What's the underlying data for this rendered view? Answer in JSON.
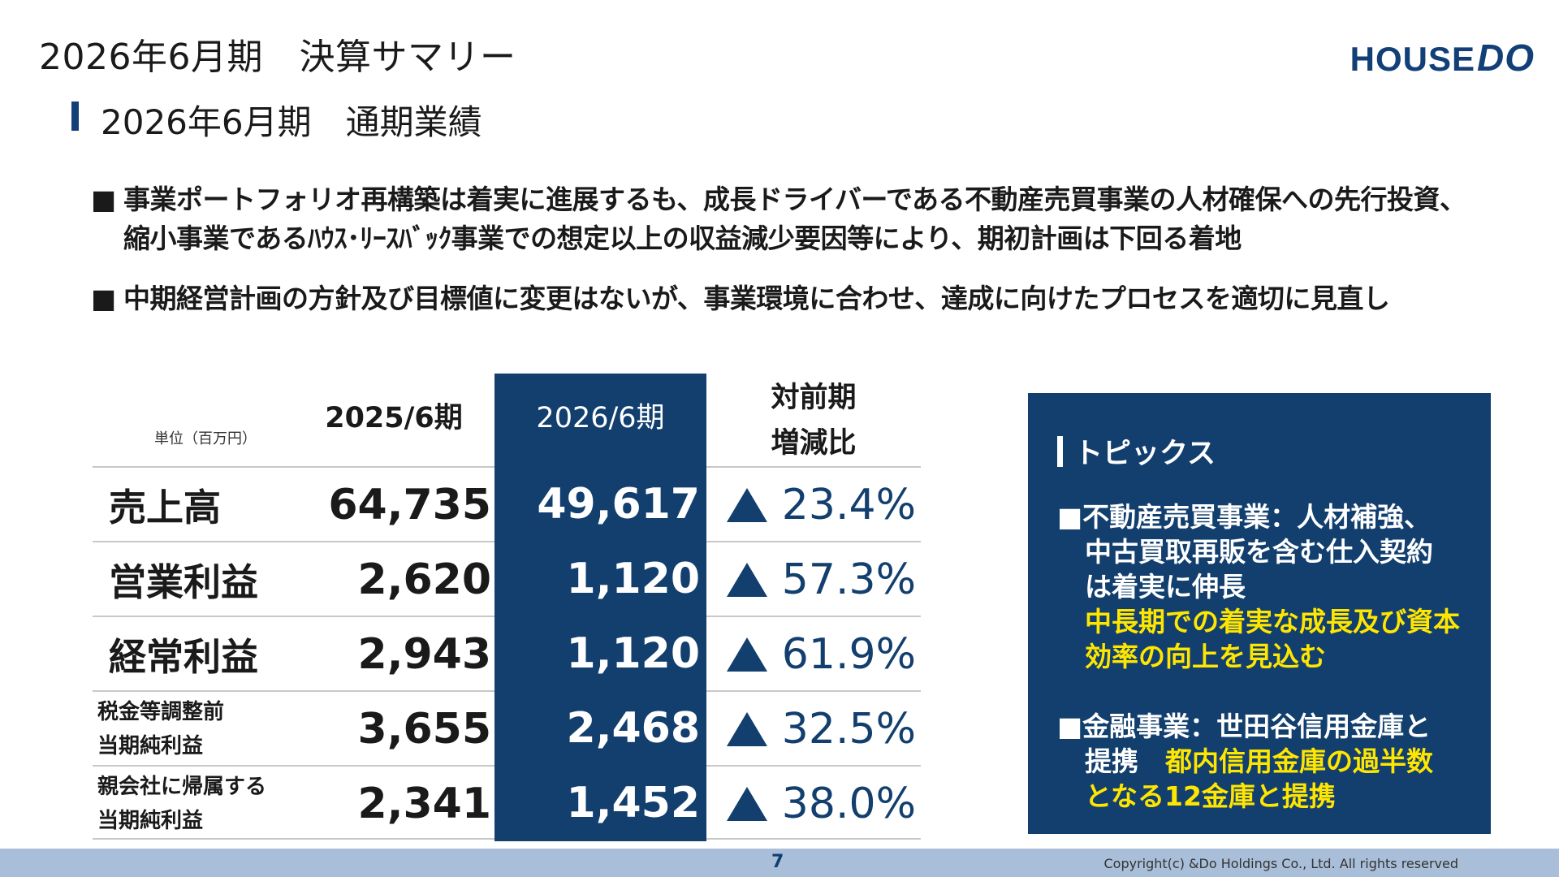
{
  "header": {
    "title": "2026年6月期　決算サマリー",
    "logo_house": "HOUSE",
    "logo_do": "DO"
  },
  "section": {
    "title": "2026年6月期　通期業績"
  },
  "bullets": [
    {
      "marker": "■",
      "lines": [
        "事業ポートフォリオ再構築は着実に進展するも、成長ドライバーである不動産売買事業の人材確保への先行投資、",
        "縮小事業であるﾊｳｽ･ﾘｰｽﾊﾞｯｸ事業での想定以上の収益減少要因等により、期初計画は下回る着地"
      ]
    },
    {
      "marker": "■",
      "lines": [
        "中期経営計画の方針及び目標値に変更はないが、事業環境に合わせ、達成に向けたプロセスを適切に見直し"
      ]
    }
  ],
  "table": {
    "unit": "単位（百万円）",
    "col_prev": "2025/6期",
    "col_cur": "2026/6期",
    "col_chg_1": "対前期",
    "col_chg_2": "増減比",
    "rows": [
      {
        "label_1": "売上高",
        "label_2": "",
        "prev": "64,735",
        "cur": "49,617",
        "chg": "23.4%"
      },
      {
        "label_1": "営業利益",
        "label_2": "",
        "prev": "2,620",
        "cur": "1,120",
        "chg": "57.3%"
      },
      {
        "label_1": "経常利益",
        "label_2": "",
        "prev": "2,943",
        "cur": "1,120",
        "chg": "61.9%"
      },
      {
        "label_1": "税金等調整前",
        "label_2": "当期純利益",
        "prev": "3,655",
        "cur": "2,468",
        "chg": "32.5%"
      },
      {
        "label_1": "親会社に帰属する",
        "label_2": "当期純利益",
        "prev": "2,341",
        "cur": "1,452",
        "chg": "38.0%"
      }
    ]
  },
  "topics": {
    "title": "トピックス",
    "item1": {
      "l1": "■不動産売買事業：人材補強、",
      "l2": "中古買取再販を含む仕入契約",
      "l3": "は着実に伸長",
      "y1": "中長期での着実な成長及び資本",
      "y2": "効率の向上を見込む"
    },
    "item2": {
      "l1": "■金融事業：世田谷信用金庫と",
      "l2a": "提携　",
      "y1": "都内信用金庫の過半数",
      "y2": "となる12金庫と提携"
    }
  },
  "footer": {
    "page": "7",
    "copyright": "Copyright(c) &Do Holdings Co., Ltd. All rights reserved"
  },
  "colors": {
    "navy": "#123f6e",
    "highlight": "#ffe600",
    "footer": "#a9bed8"
  }
}
